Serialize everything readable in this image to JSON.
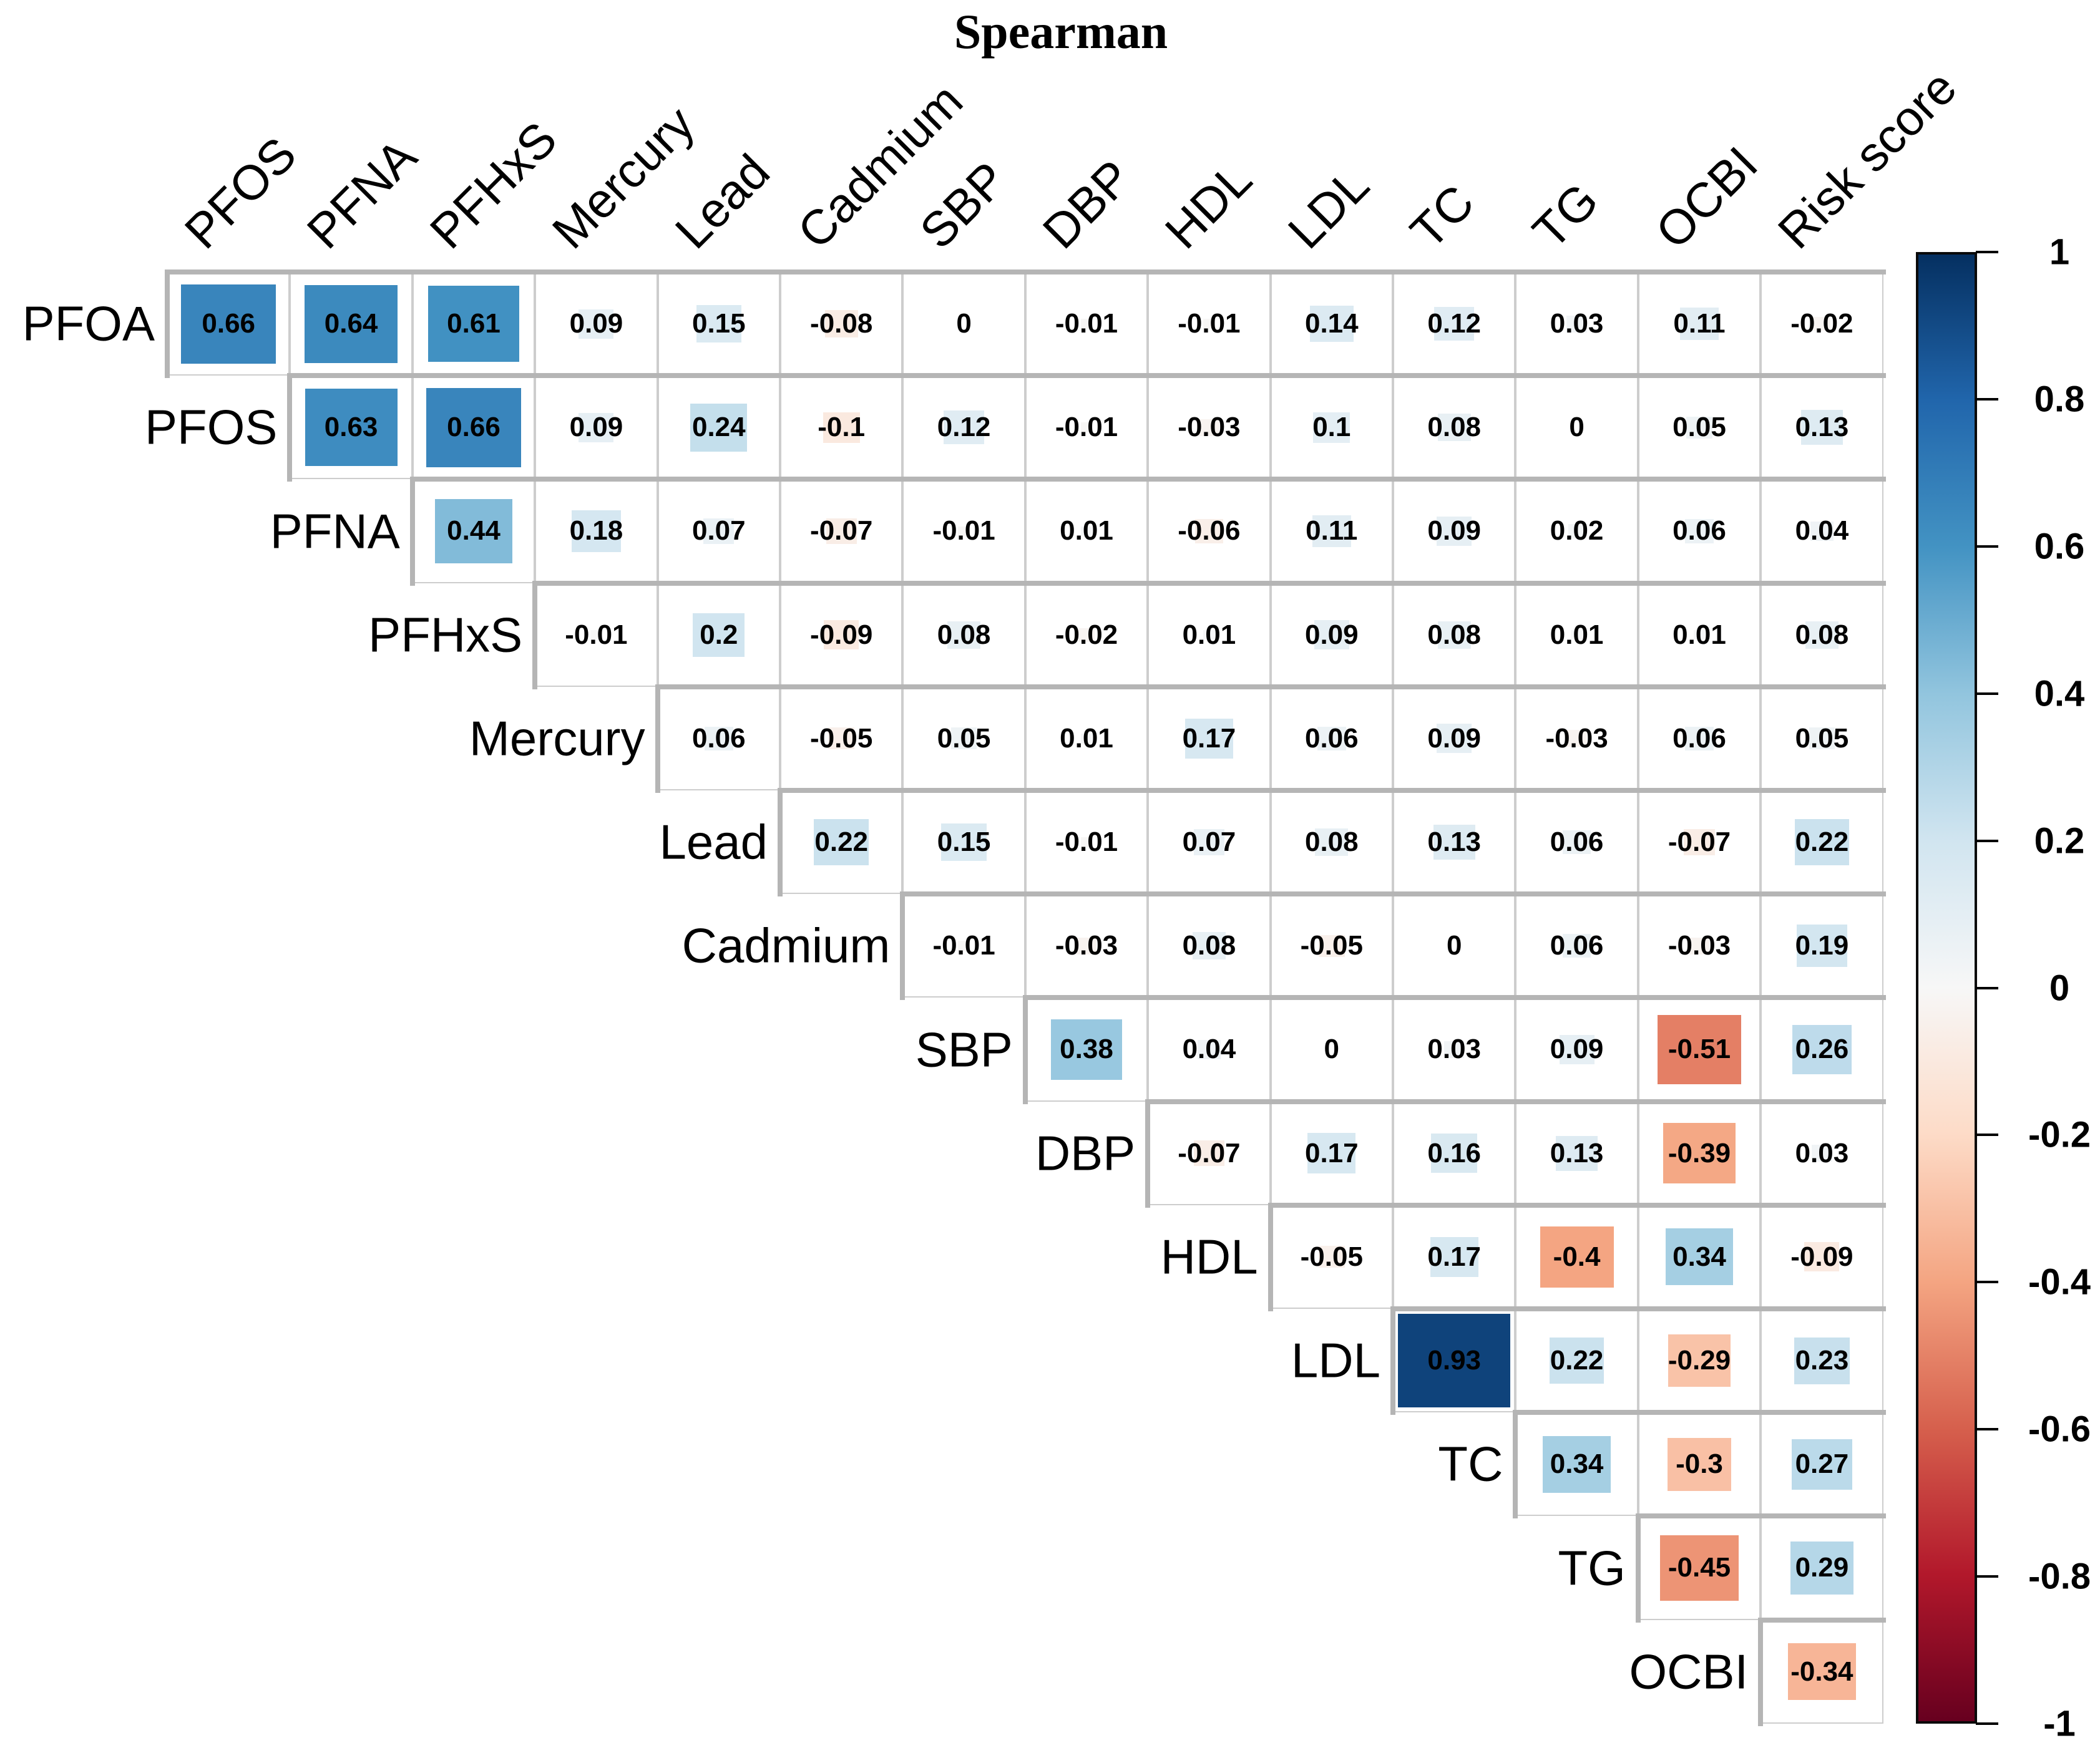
{
  "title": "Spearman",
  "chart_data": {
    "type": "heatmap",
    "subtype": "spearman-correlation-upper-triangle",
    "title": "Spearman",
    "column_labels": [
      "PFOS",
      "PFNA",
      "PFHxS",
      "Mercury",
      "Lead",
      "Cadmium",
      "SBP",
      "DBP",
      "HDL",
      "LDL",
      "TC",
      "TG",
      "OCBI",
      "Risk score"
    ],
    "row_labels": [
      "PFOA",
      "PFOS",
      "PFNA",
      "PFHxS",
      "Mercury",
      "Lead",
      "Cadmium",
      "SBP",
      "DBP",
      "HDL",
      "LDL",
      "TC",
      "TG",
      "OCBI"
    ],
    "triangle_note": "row i holds coefficients for columns i..14 of column_labels",
    "rows": [
      {
        "label": "PFOA",
        "values": [
          0.66,
          0.64,
          0.61,
          0.09,
          0.15,
          -0.08,
          0,
          -0.01,
          -0.01,
          0.14,
          0.12,
          0.03,
          0.11,
          -0.02
        ]
      },
      {
        "label": "PFOS",
        "values": [
          0.63,
          0.66,
          0.09,
          0.24,
          -0.1,
          0.12,
          -0.01,
          -0.03,
          0.1,
          0.08,
          0,
          0.05,
          0.13
        ]
      },
      {
        "label": "PFNA",
        "values": [
          0.44,
          0.18,
          0.07,
          -0.07,
          -0.01,
          0.01,
          -0.06,
          0.11,
          0.09,
          0.02,
          0.06,
          0.04
        ]
      },
      {
        "label": "PFHxS",
        "values": [
          -0.01,
          0.2,
          -0.09,
          0.08,
          -0.02,
          0.01,
          0.09,
          0.08,
          0.01,
          0.01,
          0.08
        ]
      },
      {
        "label": "Mercury",
        "values": [
          0.06,
          -0.05,
          0.05,
          0.01,
          0.17,
          0.06,
          0.09,
          -0.03,
          0.06,
          0.05
        ]
      },
      {
        "label": "Lead",
        "values": [
          0.22,
          0.15,
          -0.01,
          0.07,
          0.08,
          0.13,
          0.06,
          -0.07,
          0.22
        ]
      },
      {
        "label": "Cadmium",
        "values": [
          -0.01,
          -0.03,
          0.08,
          -0.05,
          0,
          0.06,
          -0.03,
          0.19
        ]
      },
      {
        "label": "SBP",
        "values": [
          0.38,
          0.04,
          0,
          0.03,
          0.09,
          -0.51,
          0.26
        ]
      },
      {
        "label": "DBP",
        "values": [
          -0.07,
          0.17,
          0.16,
          0.13,
          -0.39,
          0.03
        ]
      },
      {
        "label": "HDL",
        "values": [
          -0.05,
          0.17,
          -0.4,
          0.34,
          -0.09
        ]
      },
      {
        "label": "LDL",
        "values": [
          0.93,
          0.22,
          -0.29,
          0.23
        ]
      },
      {
        "label": "TC",
        "values": [
          0.34,
          -0.3,
          0.27
        ]
      },
      {
        "label": "TG",
        "values": [
          -0.45,
          0.29
        ]
      },
      {
        "label": "OCBI",
        "values": [
          -0.34
        ]
      }
    ],
    "colorbar": {
      "min": -1,
      "max": 1,
      "tick_labels": [
        "1",
        "0.8",
        "0.6",
        "0.4",
        "0.2",
        "0",
        "-0.2",
        "-0.4",
        "-0.6",
        "-0.8",
        "-1"
      ],
      "tick_values": [
        1,
        0.8,
        0.6,
        0.4,
        0.2,
        0,
        -0.2,
        -0.4,
        -0.6,
        -0.8,
        -1
      ],
      "scale_stops_neg1_to_pos1": [
        "#67001F",
        "#B2182B",
        "#D6604D",
        "#F4A582",
        "#FDDBC7",
        "#F7F7F7",
        "#D1E5F0",
        "#92C5DE",
        "#4393C3",
        "#2166AC",
        "#053061"
      ],
      "position": "right"
    },
    "colors": {
      "background": "#FFFFFF",
      "grid_line": "#CDCDCD",
      "step_line": "#B5B5B5",
      "value_text": "#000000",
      "label_text": "#000000",
      "colorbar_border": "#0A0A0A"
    },
    "grid": true,
    "square_size_rule": "side proportional to sqrt(|r|)"
  }
}
